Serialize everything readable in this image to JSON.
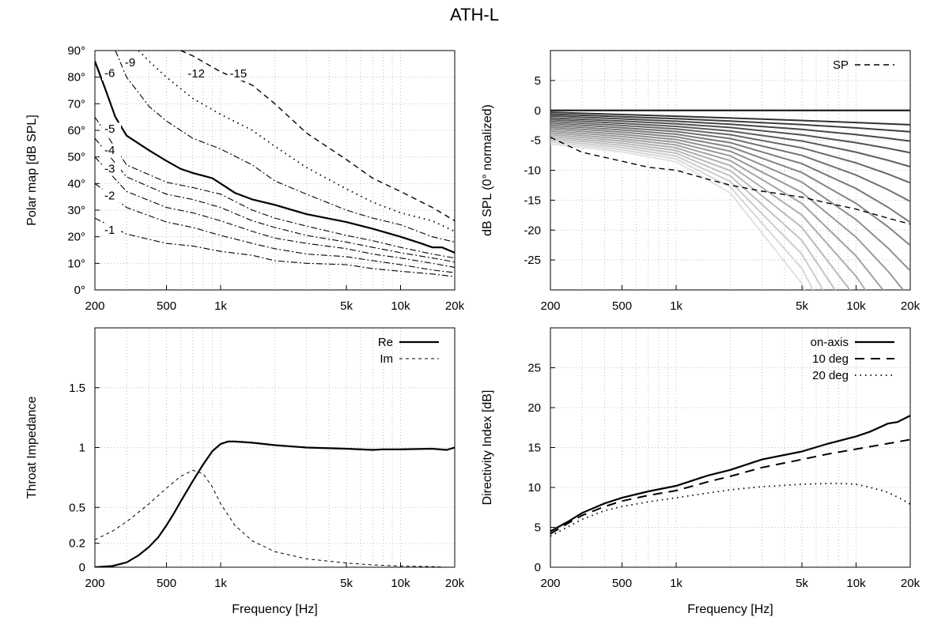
{
  "title": "ATH-L",
  "chart_data": [
    {
      "id": "polar",
      "type": "line",
      "title": "",
      "xlabel": "",
      "ylabel": "Polar map [dB SPL]",
      "xscale": "log",
      "xlim": [
        200,
        20000
      ],
      "ylim": [
        0,
        90
      ],
      "xticks": [
        {
          "v": 200,
          "t": "200"
        },
        {
          "v": 500,
          "t": "500"
        },
        {
          "v": 1000,
          "t": "1k"
        },
        {
          "v": 5000,
          "t": "5k"
        },
        {
          "v": 10000,
          "t": "10k"
        },
        {
          "v": 20000,
          "t": "20k"
        }
      ],
      "yticks": [
        {
          "v": 0,
          "t": "0°"
        },
        {
          "v": 10,
          "t": "10°"
        },
        {
          "v": 20,
          "t": "20°"
        },
        {
          "v": 30,
          "t": "30°"
        },
        {
          "v": 40,
          "t": "40°"
        },
        {
          "v": 50,
          "t": "50°"
        },
        {
          "v": 60,
          "t": "60°"
        },
        {
          "v": 70,
          "t": "70°"
        },
        {
          "v": 80,
          "t": "80°"
        },
        {
          "v": 90,
          "t": "90°"
        }
      ],
      "series": [
        {
          "name": "-1",
          "style": "dashdot",
          "x": [
            200,
            300,
            500,
            700,
            1000,
            1500,
            2000,
            3000,
            5000,
            7000,
            10000,
            15000,
            20000
          ],
          "y": [
            27,
            21,
            17.5,
            16.5,
            14.5,
            13,
            11,
            10,
            9.5,
            8,
            7,
            6,
            5
          ]
        },
        {
          "name": "-2",
          "style": "dashdot",
          "x": [
            200,
            300,
            500,
            700,
            1000,
            1500,
            2000,
            3000,
            5000,
            7000,
            10000,
            15000,
            20000
          ],
          "y": [
            40,
            31,
            25.5,
            23.5,
            20.5,
            17.5,
            15.5,
            13.5,
            12.5,
            11,
            9.5,
            7.5,
            6.5
          ]
        },
        {
          "name": "-3",
          "style": "dashdot",
          "x": [
            200,
            300,
            500,
            700,
            1000,
            1500,
            2000,
            3000,
            5000,
            7000,
            10000,
            15000,
            20000
          ],
          "y": [
            50,
            37,
            31,
            29,
            26,
            22,
            19.5,
            17.5,
            15.5,
            13.5,
            12,
            10,
            8.5
          ]
        },
        {
          "name": "-4",
          "style": "dashdot",
          "x": [
            200,
            300,
            500,
            700,
            1000,
            1500,
            2000,
            3000,
            5000,
            7000,
            10000,
            15000,
            20000
          ],
          "y": [
            57,
            42.5,
            36,
            34,
            31,
            26,
            23.5,
            20.5,
            18,
            16,
            14,
            12,
            10.5
          ]
        },
        {
          "name": "-5",
          "style": "dashdot",
          "x": [
            200,
            300,
            500,
            700,
            1000,
            1500,
            2000,
            3000,
            5000,
            7000,
            10000,
            15000,
            20000
          ],
          "y": [
            65,
            47,
            40.5,
            38.5,
            36,
            30,
            27,
            24,
            20.5,
            18.5,
            16,
            13.5,
            12
          ]
        },
        {
          "name": "-6",
          "style": "solid",
          "x": [
            200,
            230,
            260,
            300,
            400,
            500,
            600,
            700,
            900,
            1000,
            1200,
            1500,
            2000,
            3000,
            5000,
            7000,
            10000,
            13000,
            15000,
            17000,
            20000
          ],
          "y": [
            86,
            75,
            65,
            58,
            52.5,
            48.5,
            45.5,
            44,
            42,
            40,
            36.5,
            34,
            32,
            28.5,
            25.5,
            23,
            20,
            17.5,
            16,
            16,
            14
          ]
        },
        {
          "name": "-9",
          "style": "dashdot",
          "x": [
            260,
            300,
            400,
            500,
            700,
            1000,
            1500,
            2000,
            3000,
            5000,
            7000,
            10000,
            15000,
            20000
          ],
          "y": [
            90,
            80,
            69,
            63.5,
            57,
            53,
            47,
            41,
            36,
            30,
            27,
            24.5,
            20,
            18
          ]
        },
        {
          "name": "-12",
          "style": "dot",
          "x": [
            350,
            400,
            500,
            700,
            1000,
            1500,
            2000,
            3000,
            5000,
            7000,
            10000,
            15000,
            20000
          ],
          "y": [
            90,
            86,
            80,
            72,
            66,
            60,
            54,
            46,
            38,
            33,
            29,
            26,
            22
          ]
        },
        {
          "name": "-15",
          "style": "dash",
          "x": [
            600,
            700,
            1000,
            1500,
            2000,
            3000,
            5000,
            7000,
            10000,
            15000,
            20000
          ],
          "y": [
            90,
            88,
            82,
            77,
            70,
            59,
            49,
            42,
            37,
            31,
            26
          ]
        }
      ]
    },
    {
      "id": "spl",
      "type": "line",
      "title": "",
      "xlabel": "",
      "ylabel": "dB SPL (0° normalized)",
      "xscale": "log",
      "xlim": [
        200,
        20000
      ],
      "ylim": [
        -30,
        10
      ],
      "xticks": [
        {
          "v": 200,
          "t": "200"
        },
        {
          "v": 500,
          "t": "500"
        },
        {
          "v": 1000,
          "t": "1k"
        },
        {
          "v": 5000,
          "t": "5k"
        },
        {
          "v": 10000,
          "t": "10k"
        },
        {
          "v": 20000,
          "t": "20k"
        }
      ],
      "yticks": [
        {
          "v": 5,
          "t": "5"
        },
        {
          "v": 0,
          "t": "0"
        },
        {
          "v": -5,
          "t": "-5"
        },
        {
          "v": -10,
          "t": "-10"
        },
        {
          "v": -15,
          "t": "-15"
        },
        {
          "v": -20,
          "t": "-20"
        },
        {
          "v": -25,
          "t": "-25"
        }
      ],
      "legend": [
        {
          "label": "SP",
          "style": "dash"
        }
      ],
      "curves": {
        "x": [
          200,
          500,
          1000,
          2000,
          5000,
          10000,
          15000,
          20000
        ],
        "count": 18,
        "gray_from": [
          40,
          40,
          40
        ],
        "gray_to": [
          225,
          225,
          225
        ]
      },
      "series": [
        {
          "name": "SP",
          "style": "dash",
          "x": [
            200,
            300,
            500,
            700,
            1000,
            1500,
            2000,
            3000,
            5000,
            7000,
            10000,
            15000,
            20000
          ],
          "y": [
            -4.5,
            -7,
            -8.5,
            -9.5,
            -10,
            -11.5,
            -12.5,
            -13.5,
            -14.5,
            -15.5,
            -16.5,
            -18,
            -19
          ]
        }
      ]
    },
    {
      "id": "impedance",
      "type": "line",
      "title": "",
      "xlabel": "Frequency [Hz]",
      "ylabel": "Throat Impedance",
      "xscale": "log",
      "xlim": [
        200,
        20000
      ],
      "ylim": [
        0,
        2
      ],
      "xticks": [
        {
          "v": 200,
          "t": "200"
        },
        {
          "v": 500,
          "t": "500"
        },
        {
          "v": 1000,
          "t": "1k"
        },
        {
          "v": 5000,
          "t": "5k"
        },
        {
          "v": 10000,
          "t": "10k"
        },
        {
          "v": 20000,
          "t": "20k"
        }
      ],
      "yticks": [
        {
          "v": 0,
          "t": "0"
        },
        {
          "v": 0.2,
          "t": "0.2"
        },
        {
          "v": 0.5,
          "t": "0.5"
        },
        {
          "v": 1,
          "t": "1"
        },
        {
          "v": 1.5,
          "t": "1.5"
        }
      ],
      "legend": [
        {
          "label": "Re",
          "style": "solid"
        },
        {
          "label": "Im",
          "style": "dashfine"
        }
      ],
      "series": [
        {
          "name": "Re",
          "style": "solid",
          "x": [
            200,
            250,
            300,
            350,
            400,
            450,
            500,
            550,
            600,
            700,
            800,
            900,
            1000,
            1100,
            1200,
            1500,
            2000,
            3000,
            5000,
            7000,
            8000,
            10000,
            15000,
            18000,
            20000
          ],
          "y": [
            0,
            0.01,
            0.04,
            0.1,
            0.17,
            0.25,
            0.35,
            0.45,
            0.55,
            0.72,
            0.86,
            0.97,
            1.03,
            1.05,
            1.05,
            1.04,
            1.02,
            1.0,
            0.99,
            0.98,
            0.985,
            0.985,
            0.99,
            0.98,
            1.0
          ]
        },
        {
          "name": "Im",
          "style": "dashfine",
          "x": [
            200,
            250,
            300,
            400,
            500,
            600,
            700,
            800,
            900,
            1000,
            1200,
            1500,
            2000,
            3000,
            5000,
            7000,
            10000,
            15000,
            18000
          ],
          "y": [
            0.23,
            0.3,
            0.38,
            0.53,
            0.66,
            0.76,
            0.81,
            0.78,
            0.67,
            0.53,
            0.35,
            0.22,
            0.13,
            0.07,
            0.035,
            0.02,
            0.01,
            0.005,
            0.0
          ]
        }
      ]
    },
    {
      "id": "directivity",
      "type": "line",
      "title": "",
      "xlabel": "Frequency [Hz]",
      "ylabel": "Directivity Index [dB]",
      "xscale": "log",
      "xlim": [
        200,
        20000
      ],
      "ylim": [
        0,
        30
      ],
      "xticks": [
        {
          "v": 200,
          "t": "200"
        },
        {
          "v": 500,
          "t": "500"
        },
        {
          "v": 1000,
          "t": "1k"
        },
        {
          "v": 5000,
          "t": "5k"
        },
        {
          "v": 10000,
          "t": "10k"
        },
        {
          "v": 20000,
          "t": "20k"
        }
      ],
      "yticks": [
        {
          "v": 0,
          "t": "0"
        },
        {
          "v": 5,
          "t": "5"
        },
        {
          "v": 10,
          "t": "10"
        },
        {
          "v": 15,
          "t": "15"
        },
        {
          "v": 20,
          "t": "20"
        },
        {
          "v": 25,
          "t": "25"
        }
      ],
      "legend": [
        {
          "label": "on-axis",
          "style": "solid"
        },
        {
          "label": "10 deg",
          "style": "longdash"
        },
        {
          "label": "20 deg",
          "style": "dot"
        }
      ],
      "series": [
        {
          "name": "on-axis",
          "style": "solid",
          "x": [
            200,
            250,
            300,
            400,
            500,
            700,
            1000,
            1500,
            2000,
            3000,
            5000,
            7000,
            10000,
            12000,
            15000,
            17000,
            20000
          ],
          "y": [
            4.5,
            5.7,
            6.8,
            8.0,
            8.7,
            9.5,
            10.2,
            11.5,
            12.2,
            13.5,
            14.5,
            15.5,
            16.4,
            17.0,
            18.0,
            18.2,
            19.0
          ]
        },
        {
          "name": "10 deg",
          "style": "longdash",
          "x": [
            200,
            250,
            300,
            400,
            500,
            700,
            1000,
            1500,
            2000,
            3000,
            5000,
            7000,
            10000,
            15000,
            20000
          ],
          "y": [
            4.2,
            5.5,
            6.5,
            7.6,
            8.3,
            9.0,
            9.6,
            10.7,
            11.4,
            12.5,
            13.5,
            14.2,
            14.8,
            15.5,
            16.0
          ]
        },
        {
          "name": "20 deg",
          "style": "dot",
          "x": [
            200,
            300,
            400,
            500,
            700,
            1000,
            1500,
            2000,
            3000,
            5000,
            7000,
            8000,
            10000,
            12000,
            15000,
            18000,
            20000
          ],
          "y": [
            3.9,
            6.0,
            7.1,
            7.6,
            8.2,
            8.7,
            9.3,
            9.7,
            10.1,
            10.4,
            10.5,
            10.5,
            10.4,
            10.0,
            9.4,
            8.5,
            7.9
          ]
        }
      ]
    }
  ]
}
